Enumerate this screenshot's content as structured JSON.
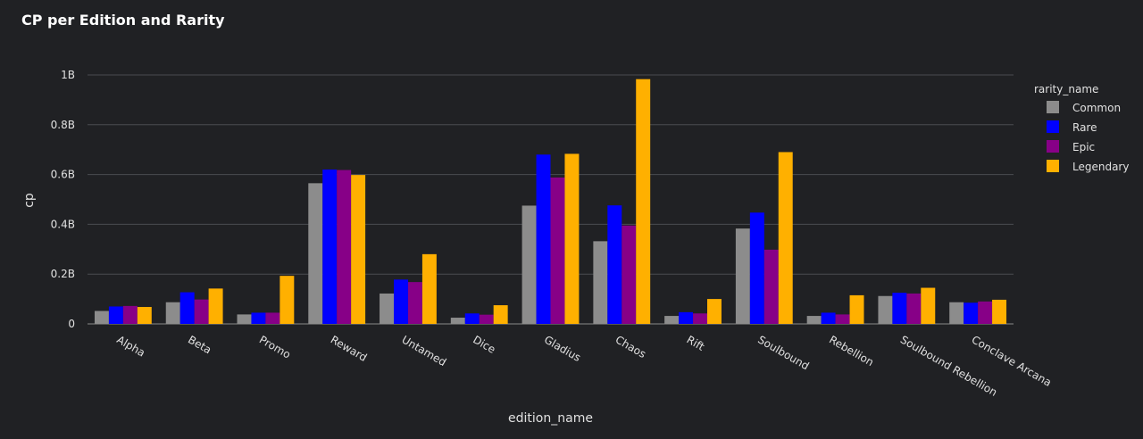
{
  "chart_data": {
    "type": "bar",
    "title": "CP per Edition and Rarity",
    "xlabel": "edition_name",
    "ylabel": "cp",
    "ylim": [
      0,
      1050000000
    ],
    "yticks": [
      0,
      200000000,
      400000000,
      600000000,
      800000000,
      1000000000
    ],
    "ytick_labels": [
      "0",
      "0.2B",
      "0.4B",
      "0.6B",
      "0.8B",
      "1B"
    ],
    "grid": true,
    "legend_title": "rarity_name",
    "legend_position": "top-right",
    "categories": [
      "Alpha",
      "Beta",
      "Promo",
      "Reward",
      "Untamed",
      "Dice",
      "Gladius",
      "Chaos",
      "Rift",
      "Soulbound",
      "Rebellion",
      "Soulbound Rebellion",
      "Conclave Arcana"
    ],
    "series": [
      {
        "name": "Common",
        "color": "#8c8c8c",
        "values": [
          52000000,
          87000000,
          38000000,
          565000000,
          122000000,
          25000000,
          475000000,
          332000000,
          32000000,
          383000000,
          32000000,
          112000000,
          87000000
        ]
      },
      {
        "name": "Rare",
        "color": "#0000ff",
        "values": [
          70000000,
          127000000,
          45000000,
          620000000,
          178000000,
          42000000,
          680000000,
          476000000,
          47000000,
          447000000,
          45000000,
          125000000,
          85000000
        ]
      },
      {
        "name": "Epic",
        "color": "#870087",
        "values": [
          72000000,
          98000000,
          45000000,
          618000000,
          168000000,
          37000000,
          588000000,
          395000000,
          42000000,
          298000000,
          38000000,
          122000000,
          90000000
        ]
      },
      {
        "name": "Legendary",
        "color": "#ffb000",
        "values": [
          68000000,
          142000000,
          193000000,
          598000000,
          280000000,
          75000000,
          683000000,
          983000000,
          100000000,
          690000000,
          115000000,
          145000000,
          97000000
        ]
      }
    ]
  }
}
